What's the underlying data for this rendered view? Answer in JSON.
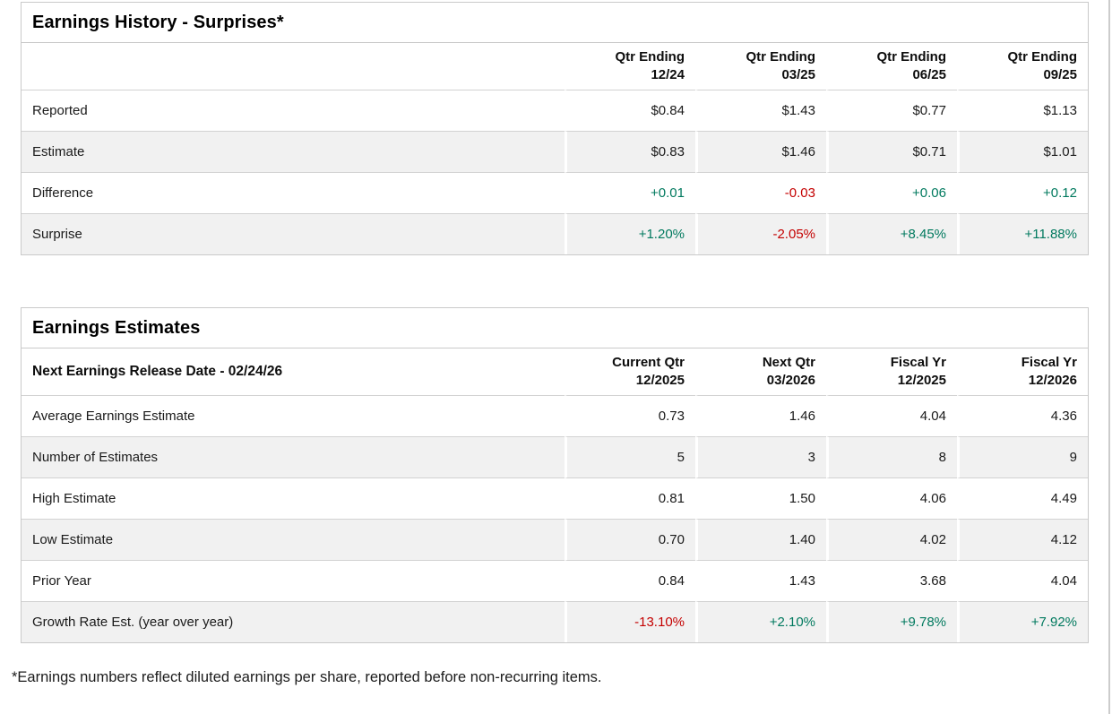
{
  "colors": {
    "positive": "#00795e",
    "negative": "#c40000",
    "stripe": "#f1f1f1",
    "border": "#c9c9c9"
  },
  "earnings_history": {
    "title": "Earnings History - Surprises*",
    "columns": [
      [
        "Qtr Ending",
        "12/24"
      ],
      [
        "Qtr Ending",
        "03/25"
      ],
      [
        "Qtr Ending",
        "06/25"
      ],
      [
        "Qtr Ending",
        "09/25"
      ]
    ],
    "rows": [
      {
        "label": "Reported",
        "values": [
          "$0.84",
          "$1.43",
          "$0.77",
          "$1.13"
        ]
      },
      {
        "label": "Estimate",
        "values": [
          "$0.83",
          "$1.46",
          "$0.71",
          "$1.01"
        ]
      },
      {
        "label": "Difference",
        "values": [
          "+0.01",
          "-0.03",
          "+0.06",
          "+0.12"
        ]
      },
      {
        "label": "Surprise",
        "values": [
          "+1.20%",
          "-2.05%",
          "+8.45%",
          "+11.88%"
        ]
      }
    ]
  },
  "earnings_estimates": {
    "title": "Earnings Estimates",
    "subtitle": "Next Earnings Release Date - 02/24/26",
    "columns": [
      [
        "Current Qtr",
        "12/2025"
      ],
      [
        "Next Qtr",
        "03/2026"
      ],
      [
        "Fiscal Yr",
        "12/2025"
      ],
      [
        "Fiscal Yr",
        "12/2026"
      ]
    ],
    "rows": [
      {
        "label": "Average Earnings Estimate",
        "values": [
          "0.73",
          "1.46",
          "4.04",
          "4.36"
        ]
      },
      {
        "label": "Number of Estimates",
        "values": [
          "5",
          "3",
          "8",
          "9"
        ]
      },
      {
        "label": "High Estimate",
        "values": [
          "0.81",
          "1.50",
          "4.06",
          "4.49"
        ]
      },
      {
        "label": "Low Estimate",
        "values": [
          "0.70",
          "1.40",
          "4.02",
          "4.12"
        ]
      },
      {
        "label": "Prior Year",
        "values": [
          "0.84",
          "1.43",
          "3.68",
          "4.04"
        ]
      },
      {
        "label": "Growth Rate Est. (year over year)",
        "values": [
          "-13.10%",
          "+2.10%",
          "+9.78%",
          "+7.92%"
        ]
      }
    ]
  },
  "footnote": "*Earnings numbers reflect diluted earnings per share, reported before non-recurring items."
}
